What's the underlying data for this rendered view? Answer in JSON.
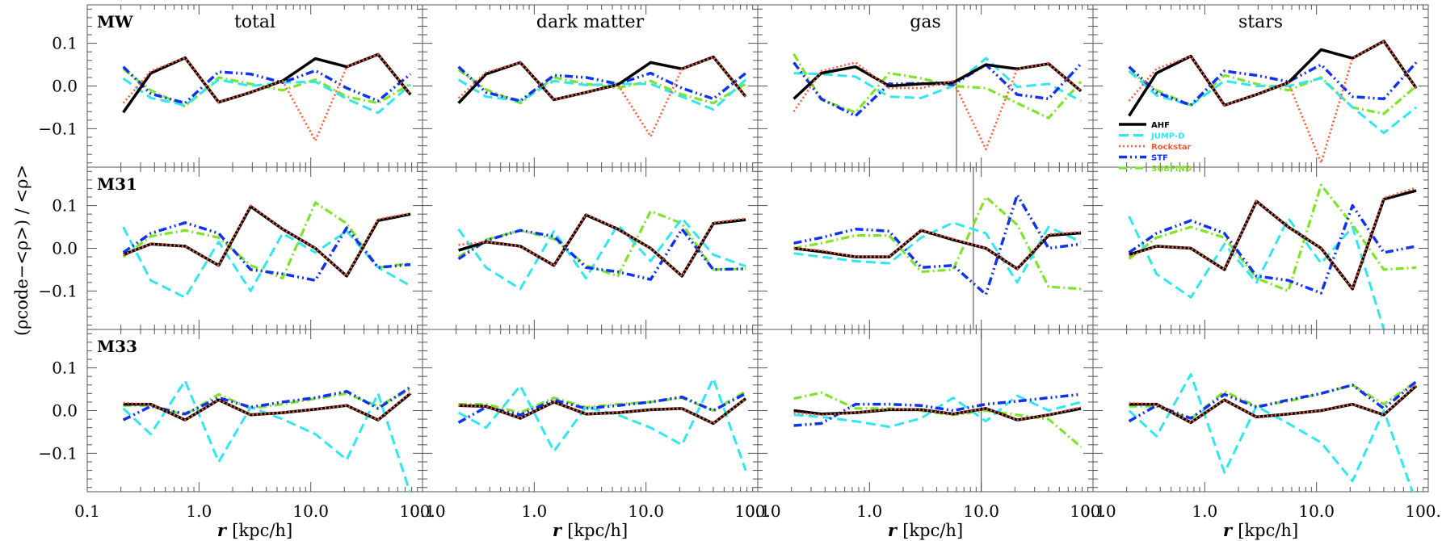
{
  "figure": {
    "x_axis_label_main": "r",
    "x_axis_label_unit": "[kpc/h]",
    "y_axis_label": "(ρcode−<ρ>) / <ρ>"
  },
  "chart_data": {
    "type": "line",
    "x_scale": "log",
    "xlim": [
      0.1,
      100.0
    ],
    "ylim": [
      -0.19,
      0.19
    ],
    "x_tick_labels": [
      "0.1",
      "1.0",
      "10.0",
      "100.0"
    ],
    "y_tick_labels": [
      "−0.1",
      "0.0",
      "0.1"
    ],
    "y_tick_values": [
      -0.1,
      0.0,
      0.1
    ],
    "x": [
      0.21,
      0.37,
      0.75,
      1.5,
      2.9,
      5.6,
      11,
      21,
      40,
      78
    ],
    "columns": [
      "total",
      "dark matter",
      "gas",
      "stars"
    ],
    "rows": [
      "MW",
      "M31",
      "M33"
    ],
    "legend": {
      "placement": "row MW, column stars, lower-left",
      "entries": [
        "AHF",
        "JUMP-D",
        "Rockstar",
        "STF",
        "SUBFIND"
      ]
    },
    "series_styles": {
      "AHF": {
        "color": "#000000",
        "dash": "none",
        "width": 3.5
      },
      "JUMP-D": {
        "color": "#33e6ee",
        "dash": "12,6",
        "width": 3
      },
      "Rockstar": {
        "color": "#ff5a3a",
        "dash": "2,3",
        "width": 2.6
      },
      "STF": {
        "color": "#1133ee",
        "dash": "10,4,2,4,2,4",
        "width": 3.5
      },
      "SUBFIND": {
        "color": "#7fe22b",
        "dash": "10,4,2,4",
        "width": 3.2
      }
    },
    "vertical_lines": [
      {
        "row": "MW",
        "col": "gas",
        "x": 6.0
      },
      {
        "row": "M31",
        "col": "gas",
        "x": 8.5
      },
      {
        "row": "M33",
        "col": "gas",
        "x": 10.0
      }
    ],
    "panels": [
      {
        "row": "MW",
        "col": "total",
        "series": {
          "AHF": [
            -0.062,
            0.03,
            0.066,
            -0.038,
            -0.015,
            0.012,
            0.064,
            0.045,
            0.074,
            -0.02
          ],
          "JUMP-D": [
            0.018,
            -0.028,
            -0.045,
            0.015,
            0.0,
            0.008,
            0.01,
            -0.03,
            -0.063,
            0.003
          ],
          "Rockstar": [
            -0.04,
            0.035,
            0.066,
            -0.038,
            -0.015,
            0.012,
            -0.128,
            0.045,
            0.074,
            -0.02
          ],
          "STF": [
            0.045,
            -0.018,
            -0.04,
            0.033,
            0.028,
            0.008,
            0.036,
            -0.005,
            -0.035,
            0.028
          ],
          "SUBFIND": [
            0.04,
            -0.01,
            -0.048,
            0.02,
            0.005,
            -0.01,
            0.015,
            -0.025,
            -0.04,
            0.005
          ]
        }
      },
      {
        "row": "MW",
        "col": "dark matter",
        "series": {
          "AHF": [
            -0.04,
            0.028,
            0.055,
            -0.032,
            -0.015,
            0.003,
            0.055,
            0.04,
            0.068,
            -0.025
          ],
          "JUMP-D": [
            0.015,
            -0.025,
            -0.035,
            0.012,
            0.002,
            0.005,
            0.005,
            -0.025,
            -0.055,
            0.015
          ],
          "Rockstar": [
            -0.028,
            0.032,
            0.055,
            -0.032,
            -0.015,
            0.003,
            -0.118,
            0.04,
            0.068,
            -0.025
          ],
          "STF": [
            0.045,
            -0.015,
            -0.035,
            0.025,
            0.02,
            0.005,
            0.03,
            -0.005,
            -0.03,
            0.03
          ],
          "SUBFIND": [
            0.038,
            -0.008,
            -0.04,
            0.02,
            0.005,
            -0.005,
            0.012,
            -0.02,
            -0.04,
            0.005
          ]
        }
      },
      {
        "row": "MW",
        "col": "gas",
        "series": {
          "AHF": [
            -0.03,
            0.03,
            0.045,
            0.0,
            0.005,
            0.008,
            0.05,
            0.04,
            0.052,
            -0.012
          ],
          "JUMP-D": [
            0.03,
            0.028,
            0.022,
            -0.025,
            -0.028,
            0.0,
            0.065,
            -0.002,
            0.005,
            -0.035
          ],
          "Rockstar": [
            -0.06,
            0.035,
            0.055,
            -0.005,
            -0.005,
            0.012,
            -0.148,
            0.04,
            0.052,
            -0.012
          ],
          "STF": [
            0.055,
            -0.03,
            -0.07,
            0.005,
            0.006,
            0.003,
            0.05,
            -0.02,
            -0.03,
            0.052
          ],
          "SUBFIND": [
            0.075,
            -0.032,
            -0.062,
            0.03,
            0.018,
            0.0,
            -0.005,
            -0.04,
            -0.075,
            0.01
          ]
        }
      },
      {
        "row": "MW",
        "col": "stars",
        "series": {
          "AHF": [
            -0.07,
            0.03,
            0.07,
            -0.045,
            -0.02,
            0.008,
            0.085,
            0.065,
            0.105,
            -0.005
          ],
          "JUMP-D": [
            0.035,
            -0.022,
            -0.045,
            0.012,
            0.0,
            0.0,
            0.018,
            -0.05,
            -0.11,
            -0.05
          ],
          "Rockstar": [
            -0.035,
            0.04,
            0.07,
            -0.045,
            -0.02,
            0.008,
            -0.18,
            0.065,
            0.105,
            -0.005
          ],
          "STF": [
            0.045,
            -0.015,
            -0.045,
            0.035,
            0.025,
            0.01,
            0.05,
            -0.025,
            -0.03,
            0.055
          ],
          "SUBFIND": [
            0.035,
            -0.01,
            -0.045,
            0.025,
            0.005,
            -0.01,
            0.02,
            -0.05,
            -0.065,
            0.0
          ]
        }
      },
      {
        "row": "M31",
        "col": "total",
        "series": {
          "AHF": [
            -0.015,
            0.01,
            0.005,
            -0.04,
            0.098,
            0.045,
            0.0,
            -0.065,
            0.065,
            0.08
          ],
          "JUMP-D": [
            0.05,
            -0.075,
            -0.115,
            0.015,
            -0.1,
            0.035,
            -0.01,
            0.04,
            -0.045,
            -0.088
          ],
          "Rockstar": [
            -0.015,
            0.01,
            0.005,
            -0.04,
            0.1,
            0.045,
            0.0,
            -0.065,
            0.068,
            0.082
          ],
          "STF": [
            -0.01,
            0.035,
            0.06,
            0.035,
            -0.05,
            -0.06,
            -0.075,
            0.048,
            -0.045,
            -0.038
          ],
          "SUBFIND": [
            -0.02,
            0.028,
            0.042,
            0.025,
            -0.04,
            -0.07,
            0.107,
            0.058,
            -0.045,
            -0.035
          ]
        }
      },
      {
        "row": "M31",
        "col": "dark matter",
        "series": {
          "AHF": [
            -0.005,
            0.015,
            0.005,
            -0.04,
            0.078,
            0.045,
            0.0,
            -0.065,
            0.058,
            0.067
          ],
          "JUMP-D": [
            0.045,
            -0.045,
            -0.095,
            0.04,
            -0.07,
            0.055,
            -0.03,
            0.07,
            -0.015,
            -0.042
          ],
          "Rockstar": [
            0.008,
            0.015,
            0.005,
            -0.04,
            0.08,
            0.045,
            0.0,
            -0.065,
            0.06,
            0.07
          ],
          "STF": [
            -0.025,
            0.018,
            0.042,
            0.028,
            -0.045,
            -0.055,
            -0.073,
            0.045,
            -0.05,
            -0.048
          ],
          "SUBFIND": [
            -0.02,
            0.02,
            0.042,
            0.022,
            -0.04,
            -0.065,
            0.087,
            0.058,
            -0.05,
            -0.048
          ]
        }
      },
      {
        "row": "M31",
        "col": "gas",
        "series": {
          "AHF": [
            0.0,
            -0.008,
            -0.02,
            -0.02,
            0.042,
            0.02,
            0.0,
            -0.048,
            0.03,
            0.036
          ],
          "JUMP-D": [
            -0.012,
            -0.02,
            -0.03,
            -0.035,
            0.025,
            0.06,
            0.035,
            -0.08,
            0.05,
            0.015
          ],
          "Rockstar": [
            0.0,
            -0.005,
            -0.02,
            -0.02,
            0.043,
            0.022,
            0.0,
            -0.048,
            0.033,
            0.038
          ],
          "STF": [
            0.012,
            0.025,
            0.045,
            0.04,
            -0.045,
            -0.04,
            -0.108,
            0.125,
            0.0,
            0.01
          ],
          "SUBFIND": [
            0.0,
            0.012,
            0.03,
            0.03,
            -0.055,
            -0.05,
            0.12,
            0.055,
            -0.09,
            -0.095
          ]
        }
      },
      {
        "row": "M31",
        "col": "stars",
        "series": {
          "AHF": [
            -0.015,
            0.005,
            0.0,
            -0.05,
            0.11,
            0.05,
            0.0,
            -0.095,
            0.115,
            0.135
          ],
          "JUMP-D": [
            0.075,
            -0.06,
            -0.115,
            0.01,
            -0.08,
            0.07,
            -0.035,
            0.05,
            -0.19,
            -0.22
          ],
          "Rockstar": [
            -0.018,
            0.005,
            0.0,
            -0.05,
            0.11,
            0.05,
            0.0,
            -0.095,
            0.118,
            0.142
          ],
          "STF": [
            -0.01,
            0.035,
            0.065,
            0.035,
            -0.065,
            -0.075,
            -0.105,
            0.1,
            -0.01,
            0.005
          ],
          "SUBFIND": [
            -0.025,
            0.025,
            0.05,
            0.025,
            -0.07,
            -0.1,
            0.148,
            0.055,
            -0.05,
            -0.045
          ]
        }
      },
      {
        "row": "M33",
        "col": "total",
        "series": {
          "AHF": [
            0.015,
            0.015,
            -0.022,
            0.025,
            -0.01,
            -0.005,
            0.003,
            0.012,
            -0.022,
            0.04
          ],
          "JUMP-D": [
            0.005,
            -0.055,
            0.07,
            -0.12,
            0.008,
            -0.02,
            -0.055,
            -0.115,
            0.04,
            -0.195
          ],
          "Rockstar": [
            0.018,
            0.015,
            -0.022,
            0.025,
            -0.01,
            -0.005,
            0.003,
            0.012,
            -0.022,
            0.042
          ],
          "STF": [
            -0.022,
            0.01,
            -0.008,
            0.03,
            0.008,
            0.02,
            0.03,
            0.045,
            0.005,
            0.055
          ],
          "SUBFIND": [
            0.012,
            0.012,
            -0.01,
            0.038,
            0.005,
            0.015,
            0.028,
            0.04,
            0.01,
            0.05
          ]
        }
      },
      {
        "row": "M33",
        "col": "dark matter",
        "series": {
          "AHF": [
            0.012,
            0.01,
            -0.018,
            0.02,
            -0.008,
            -0.005,
            0.002,
            0.005,
            -0.03,
            0.028
          ],
          "JUMP-D": [
            -0.005,
            -0.04,
            0.058,
            -0.095,
            0.008,
            -0.01,
            -0.04,
            -0.08,
            0.075,
            -0.14
          ],
          "Rockstar": [
            0.012,
            0.01,
            -0.018,
            0.02,
            -0.008,
            -0.005,
            0.002,
            0.005,
            -0.03,
            0.028
          ],
          "STF": [
            -0.028,
            0.008,
            -0.01,
            0.025,
            0.005,
            0.012,
            0.02,
            0.032,
            0.0,
            0.04
          ],
          "SUBFIND": [
            0.015,
            0.015,
            -0.005,
            0.03,
            0.008,
            0.015,
            0.02,
            0.03,
            0.0,
            0.045
          ]
        }
      },
      {
        "row": "M33",
        "col": "gas",
        "series": {
          "AHF": [
            0.0,
            -0.008,
            -0.005,
            0.002,
            0.002,
            -0.008,
            0.005,
            -0.022,
            -0.01,
            0.005
          ],
          "JUMP-D": [
            -0.01,
            -0.015,
            -0.025,
            -0.038,
            -0.018,
            0.03,
            -0.025,
            0.035,
            0.0,
            0.02
          ],
          "Rockstar": [
            -0.005,
            -0.01,
            -0.005,
            0.003,
            0.002,
            -0.008,
            0.005,
            -0.022,
            -0.01,
            0.008
          ],
          "STF": [
            -0.035,
            -0.03,
            0.015,
            0.015,
            0.012,
            0.0,
            0.015,
            0.022,
            0.03,
            0.038
          ],
          "SUBFIND": [
            0.028,
            0.042,
            0.005,
            0.005,
            0.0,
            -0.01,
            0.0,
            -0.01,
            -0.02,
            -0.085
          ]
        }
      },
      {
        "row": "M33",
        "col": "stars",
        "series": {
          "AHF": [
            0.015,
            0.015,
            -0.028,
            0.025,
            -0.015,
            -0.008,
            0.0,
            0.015,
            -0.01,
            0.058
          ],
          "JUMP-D": [
            0.0,
            -0.06,
            0.085,
            -0.145,
            0.01,
            -0.03,
            -0.075,
            -0.165,
            0.0,
            -0.215
          ],
          "Rockstar": [
            0.018,
            0.015,
            -0.028,
            0.025,
            -0.015,
            -0.008,
            0.0,
            0.015,
            -0.01,
            0.06
          ],
          "STF": [
            -0.025,
            0.012,
            -0.018,
            0.038,
            0.008,
            0.025,
            0.04,
            0.06,
            0.005,
            0.068
          ],
          "SUBFIND": [
            0.01,
            0.01,
            -0.02,
            0.045,
            0.01,
            0.022,
            0.04,
            0.06,
            0.015,
            0.068
          ]
        }
      }
    ]
  }
}
